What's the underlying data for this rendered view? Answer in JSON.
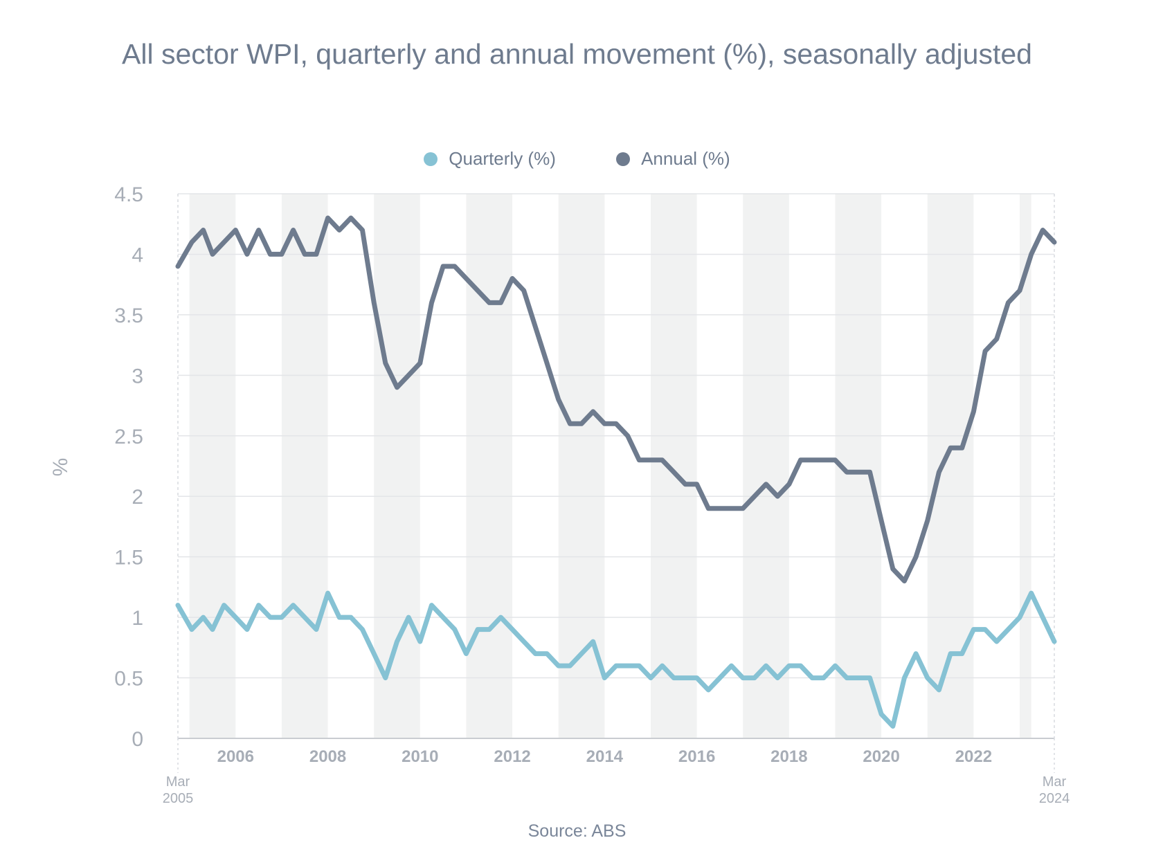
{
  "chart_data": {
    "type": "line",
    "title": "All sector WPI, quarterly and annual movement (%), seasonally adjusted",
    "ylabel": "%",
    "xlabel": "",
    "source": "Source: ABS",
    "ylim": [
      0,
      4.5
    ],
    "yticks": [
      "0",
      "0.5",
      "1",
      "1.5",
      "2",
      "2.5",
      "3",
      "3.5",
      "4",
      "4.5"
    ],
    "xrange_years": [
      2005.0,
      2024.0
    ],
    "xticks": [
      "2006",
      "2008",
      "2010",
      "2012",
      "2014",
      "2016",
      "2018",
      "2020",
      "2022"
    ],
    "x_start_label": {
      "month": "Mar",
      "year": "2005"
    },
    "x_end_label": {
      "month": "Mar",
      "year": "2024"
    },
    "grid": true,
    "legend_position": "top",
    "shaded_bands": [
      [
        2005.25,
        2006.25
      ],
      [
        2007.25,
        2008.25
      ],
      [
        2009.25,
        2010.25
      ],
      [
        2011.25,
        2012.25
      ],
      [
        2013.25,
        2014.25
      ],
      [
        2015.25,
        2016.25
      ],
      [
        2017.25,
        2018.25
      ],
      [
        2019.25,
        2020.25
      ],
      [
        2021.25,
        2022.25
      ],
      [
        2023.25,
        2023.5
      ]
    ],
    "series": [
      {
        "name": "Quarterly (%)",
        "color": "#86c2d4",
        "points": [
          [
            2005.0,
            1.1
          ],
          [
            2005.3,
            0.9
          ],
          [
            2005.55,
            1.0
          ],
          [
            2005.75,
            0.9
          ],
          [
            2006.0,
            1.1
          ],
          [
            2006.25,
            1.0
          ],
          [
            2006.5,
            0.9
          ],
          [
            2006.75,
            1.1
          ],
          [
            2007.0,
            1.0
          ],
          [
            2007.25,
            1.0
          ],
          [
            2007.5,
            1.1
          ],
          [
            2007.75,
            1.0
          ],
          [
            2008.0,
            0.9
          ],
          [
            2008.25,
            1.2
          ],
          [
            2008.5,
            1.0
          ],
          [
            2008.75,
            1.0
          ],
          [
            2009.0,
            0.9
          ],
          [
            2009.25,
            0.7
          ],
          [
            2009.5,
            0.5
          ],
          [
            2009.75,
            0.8
          ],
          [
            2010.0,
            1.0
          ],
          [
            2010.25,
            0.8
          ],
          [
            2010.5,
            1.1
          ],
          [
            2010.75,
            1.0
          ],
          [
            2011.0,
            0.9
          ],
          [
            2011.25,
            0.7
          ],
          [
            2011.5,
            0.9
          ],
          [
            2011.75,
            0.9
          ],
          [
            2012.0,
            1.0
          ],
          [
            2012.25,
            0.9
          ],
          [
            2012.5,
            0.8
          ],
          [
            2012.75,
            0.7
          ],
          [
            2013.0,
            0.7
          ],
          [
            2013.25,
            0.6
          ],
          [
            2013.5,
            0.6
          ],
          [
            2013.75,
            0.7
          ],
          [
            2014.0,
            0.8
          ],
          [
            2014.25,
            0.5
          ],
          [
            2014.5,
            0.6
          ],
          [
            2014.75,
            0.6
          ],
          [
            2015.0,
            0.6
          ],
          [
            2015.25,
            0.5
          ],
          [
            2015.5,
            0.6
          ],
          [
            2015.75,
            0.5
          ],
          [
            2016.0,
            0.5
          ],
          [
            2016.25,
            0.5
          ],
          [
            2016.5,
            0.4
          ],
          [
            2016.75,
            0.5
          ],
          [
            2017.0,
            0.6
          ],
          [
            2017.25,
            0.5
          ],
          [
            2017.5,
            0.5
          ],
          [
            2017.75,
            0.6
          ],
          [
            2018.0,
            0.5
          ],
          [
            2018.25,
            0.6
          ],
          [
            2018.5,
            0.6
          ],
          [
            2018.75,
            0.5
          ],
          [
            2019.0,
            0.5
          ],
          [
            2019.25,
            0.6
          ],
          [
            2019.5,
            0.5
          ],
          [
            2019.75,
            0.5
          ],
          [
            2020.0,
            0.5
          ],
          [
            2020.25,
            0.2
          ],
          [
            2020.5,
            0.1
          ],
          [
            2020.75,
            0.5
          ],
          [
            2021.0,
            0.7
          ],
          [
            2021.25,
            0.5
          ],
          [
            2021.5,
            0.4
          ],
          [
            2021.75,
            0.7
          ],
          [
            2022.0,
            0.7
          ],
          [
            2022.25,
            0.9
          ],
          [
            2022.5,
            0.9
          ],
          [
            2022.75,
            0.8
          ],
          [
            2023.0,
            0.9
          ],
          [
            2023.25,
            1.0
          ],
          [
            2023.5,
            1.2
          ],
          [
            2023.75,
            1.0
          ],
          [
            2024.0,
            0.8
          ]
        ]
      },
      {
        "name": "Annual (%)",
        "color": "#6e7b8e",
        "points": [
          [
            2005.0,
            3.9
          ],
          [
            2005.3,
            4.1
          ],
          [
            2005.55,
            4.2
          ],
          [
            2005.75,
            4.0
          ],
          [
            2006.0,
            4.1
          ],
          [
            2006.25,
            4.2
          ],
          [
            2006.5,
            4.0
          ],
          [
            2006.75,
            4.2
          ],
          [
            2007.0,
            4.0
          ],
          [
            2007.25,
            4.0
          ],
          [
            2007.5,
            4.2
          ],
          [
            2007.75,
            4.0
          ],
          [
            2008.0,
            4.0
          ],
          [
            2008.25,
            4.3
          ],
          [
            2008.5,
            4.2
          ],
          [
            2008.75,
            4.3
          ],
          [
            2009.0,
            4.2
          ],
          [
            2009.25,
            3.6
          ],
          [
            2009.5,
            3.1
          ],
          [
            2009.75,
            2.9
          ],
          [
            2010.0,
            3.0
          ],
          [
            2010.25,
            3.1
          ],
          [
            2010.5,
            3.6
          ],
          [
            2010.75,
            3.9
          ],
          [
            2011.0,
            3.9
          ],
          [
            2011.25,
            3.8
          ],
          [
            2011.5,
            3.7
          ],
          [
            2011.75,
            3.6
          ],
          [
            2012.0,
            3.6
          ],
          [
            2012.25,
            3.8
          ],
          [
            2012.5,
            3.7
          ],
          [
            2012.75,
            3.4
          ],
          [
            2013.0,
            3.1
          ],
          [
            2013.25,
            2.8
          ],
          [
            2013.5,
            2.6
          ],
          [
            2013.75,
            2.6
          ],
          [
            2014.0,
            2.7
          ],
          [
            2014.25,
            2.6
          ],
          [
            2014.5,
            2.6
          ],
          [
            2014.75,
            2.5
          ],
          [
            2015.0,
            2.3
          ],
          [
            2015.25,
            2.3
          ],
          [
            2015.5,
            2.3
          ],
          [
            2015.75,
            2.2
          ],
          [
            2016.0,
            2.1
          ],
          [
            2016.25,
            2.1
          ],
          [
            2016.5,
            1.9
          ],
          [
            2016.75,
            1.9
          ],
          [
            2017.0,
            1.9
          ],
          [
            2017.25,
            1.9
          ],
          [
            2017.5,
            2.0
          ],
          [
            2017.75,
            2.1
          ],
          [
            2018.0,
            2.0
          ],
          [
            2018.25,
            2.1
          ],
          [
            2018.5,
            2.3
          ],
          [
            2018.75,
            2.3
          ],
          [
            2019.0,
            2.3
          ],
          [
            2019.25,
            2.3
          ],
          [
            2019.5,
            2.2
          ],
          [
            2019.75,
            2.2
          ],
          [
            2020.0,
            2.2
          ],
          [
            2020.25,
            1.8
          ],
          [
            2020.5,
            1.4
          ],
          [
            2020.75,
            1.3
          ],
          [
            2021.0,
            1.5
          ],
          [
            2021.25,
            1.8
          ],
          [
            2021.5,
            2.2
          ],
          [
            2021.75,
            2.4
          ],
          [
            2022.0,
            2.4
          ],
          [
            2022.25,
            2.7
          ],
          [
            2022.5,
            3.2
          ],
          [
            2022.75,
            3.3
          ],
          [
            2023.0,
            3.6
          ],
          [
            2023.25,
            3.7
          ],
          [
            2023.5,
            4.0
          ],
          [
            2023.75,
            4.2
          ],
          [
            2024.0,
            4.1
          ]
        ]
      }
    ]
  }
}
